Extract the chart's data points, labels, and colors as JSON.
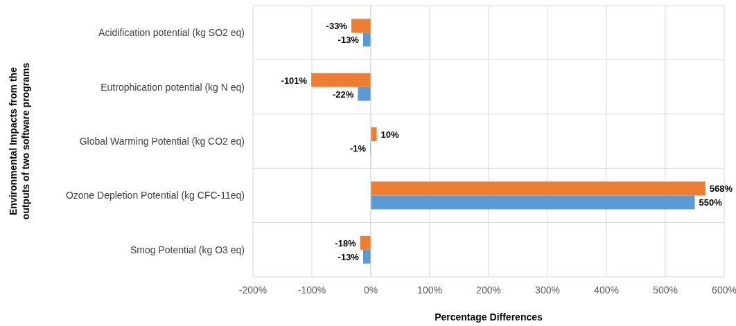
{
  "chart_data": {
    "type": "bar",
    "orientation": "horizontal",
    "ylabel": "Environmental Impacts from the outputs of two software programs",
    "xlabel": "Percentage Differences",
    "categories": [
      "Acidification potential  (kg SO2 eq)",
      "Eutrophication potential  (kg N eq)",
      "Global Warming Potential (kg CO2 eq)",
      "Ozone Depletion Potential (kg CFC-11eq)",
      "Smog Potential (kg O3 eq) "
    ],
    "series": [
      {
        "color": "#ed7d31",
        "values": [
          -33,
          -101,
          10,
          568,
          -18
        ],
        "value_labels": [
          "-33%",
          "-101%",
          "10%",
          "568%",
          "-18%"
        ]
      },
      {
        "color": "#5b9bd5",
        "values": [
          -13,
          -22,
          -1,
          550,
          -13
        ],
        "value_labels": [
          "-13%",
          "-22%",
          "-1%",
          "550%",
          "-13%"
        ]
      }
    ],
    "xlim": [
      -200,
      600
    ],
    "xticks": [
      {
        "value": -200,
        "label": "-200%"
      },
      {
        "value": -100,
        "label": "-100%"
      },
      {
        "value": 0,
        "label": "0%"
      },
      {
        "value": 100,
        "label": "100%"
      },
      {
        "value": 200,
        "label": "200%"
      },
      {
        "value": 300,
        "label": "300%"
      },
      {
        "value": 400,
        "label": "400%"
      },
      {
        "value": 500,
        "label": "500%"
      },
      {
        "value": 600,
        "label": "600%"
      }
    ],
    "grid": true
  }
}
